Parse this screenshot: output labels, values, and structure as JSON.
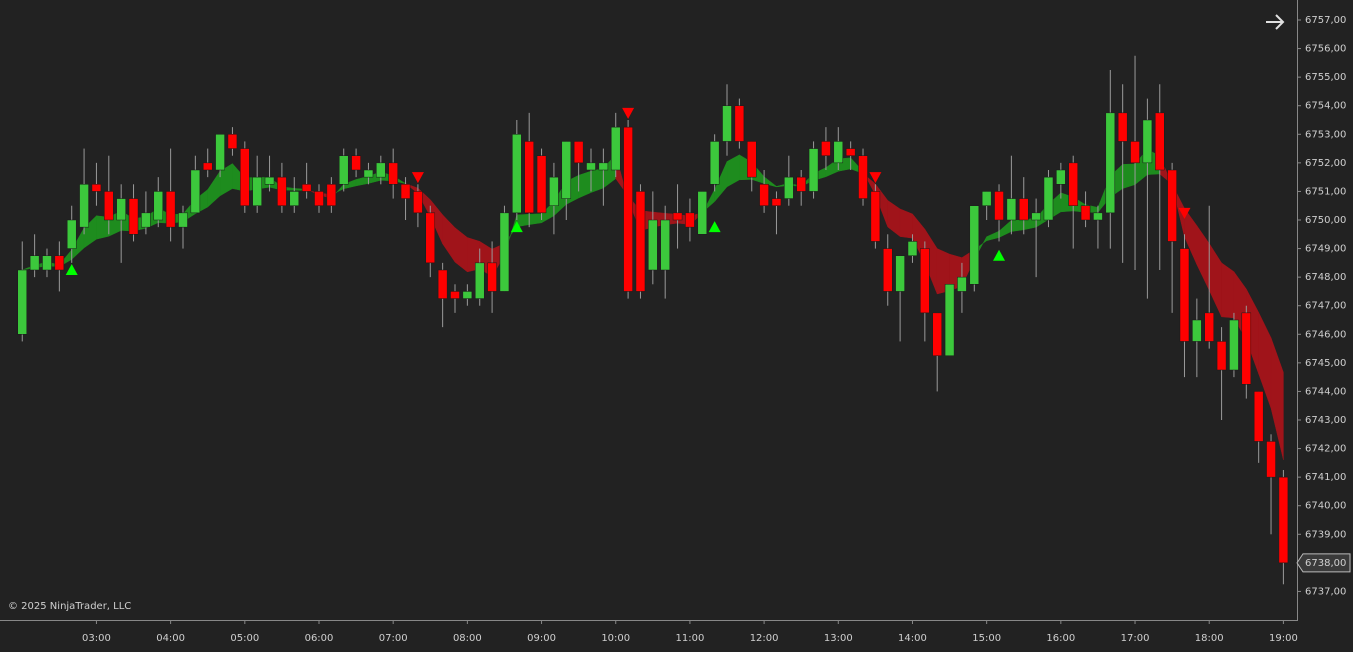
{
  "chart_data": {
    "type": "candlestick",
    "x": [
      "02:00",
      "02:10",
      "02:20",
      "02:30",
      "02:40",
      "02:50",
      "03:00",
      "03:10",
      "03:20",
      "03:30",
      "03:40",
      "03:50",
      "04:00",
      "04:10",
      "04:20",
      "04:30",
      "04:40",
      "04:50",
      "05:00",
      "05:10",
      "05:20",
      "05:30",
      "05:40",
      "05:50",
      "06:00",
      "06:10",
      "06:20",
      "06:30",
      "06:40",
      "06:50",
      "07:00",
      "07:10",
      "07:20",
      "07:30",
      "07:40",
      "07:50",
      "08:00",
      "08:10",
      "08:20",
      "08:30",
      "08:40",
      "08:50",
      "09:00",
      "09:10",
      "09:20",
      "09:30",
      "09:40",
      "09:50",
      "10:00",
      "10:10",
      "10:20",
      "10:30",
      "10:40",
      "10:50",
      "11:00",
      "11:10",
      "11:20",
      "11:30",
      "11:40",
      "11:50",
      "12:00",
      "12:10",
      "12:20",
      "12:30",
      "12:40",
      "12:50",
      "13:00",
      "13:10",
      "13:20",
      "13:30",
      "13:40",
      "13:50",
      "14:00",
      "14:10",
      "14:20",
      "14:30",
      "14:40",
      "14:50",
      "15:00",
      "15:10",
      "15:20",
      "15:30",
      "15:40",
      "15:50",
      "16:00",
      "16:10",
      "16:20",
      "16:30",
      "16:40",
      "16:50",
      "17:00",
      "17:10",
      "17:20",
      "17:30",
      "17:40",
      "17:50",
      "18:00",
      "18:10",
      "18:20",
      "18:30",
      "18:40",
      "18:50",
      "19:00"
    ],
    "open": [
      6746,
      6748.25,
      6748.25,
      6748.75,
      6749,
      6749.75,
      6751.25,
      6751,
      6750,
      6750.75,
      6749.75,
      6750,
      6751,
      6749.75,
      6750.25,
      6752,
      6751.75,
      6753,
      6752.5,
      6750.5,
      6751.25,
      6751.5,
      6750.5,
      6751.25,
      6751,
      6751.25,
      6751.25,
      6752.25,
      6751.5,
      6751.5,
      6752,
      6751.25,
      6751,
      6750.25,
      6748.25,
      6747.5,
      6747.25,
      6747.25,
      6748.5,
      6747.5,
      6750.25,
      6752.75,
      6752.25,
      6750.5,
      6750.75,
      6752.75,
      6751.75,
      6751.75,
      6751.75,
      6753.25,
      6751,
      6748.25,
      6748.25,
      6750.25,
      6750.25,
      6749.5,
      6751.25,
      6752.75,
      6754,
      6752.75,
      6751.25,
      6750.75,
      6750.75,
      6751.5,
      6751,
      6752.75,
      6752,
      6752.5,
      6752.25,
      6751,
      6749,
      6747.5,
      6748.75,
      6749,
      6746.75,
      6745.25,
      6747.5,
      6747.75,
      6750.5,
      6751,
      6750,
      6750.75,
      6750,
      6750,
      6751.25,
      6752,
      6750.5,
      6750,
      6750.25,
      6753.75,
      6752.75,
      6752,
      6753.75,
      6751.75,
      6749,
      6745.75,
      6746.75,
      6745.75,
      6744.75,
      6746.75,
      6744,
      6742.25,
      6741
    ],
    "high": [
      6749.25,
      6749.5,
      6749,
      6749.25,
      6750.5,
      6752.5,
      6752,
      6752.25,
      6751.25,
      6751.25,
      6751,
      6751.5,
      6752.5,
      6750.5,
      6752.25,
      6752.5,
      6753,
      6753.25,
      6752.75,
      6752.25,
      6752.25,
      6752,
      6751.5,
      6752,
      6751.25,
      6751.5,
      6752.5,
      6752.5,
      6752,
      6752.25,
      6752.5,
      6751.5,
      6751.25,
      6750.5,
      6748.5,
      6747.75,
      6747.75,
      6749,
      6749.25,
      6750.5,
      6753.5,
      6753.75,
      6752.5,
      6752,
      6752.75,
      6752.75,
      6752.5,
      6752.5,
      6753.75,
      6753.5,
      6751.25,
      6751,
      6750.5,
      6751.25,
      6750.75,
      6751,
      6753,
      6754.75,
      6754.25,
      6752.75,
      6751.75,
      6751,
      6752.25,
      6751.75,
      6752.75,
      6753.25,
      6753.25,
      6752.75,
      6752.5,
      6751.25,
      6749.5,
      6748.75,
      6749.5,
      6749.25,
      6746.75,
      6747.75,
      6748.5,
      6750.5,
      6751,
      6751.25,
      6752.25,
      6751.5,
      6750.75,
      6751.75,
      6752,
      6752.25,
      6751,
      6750.5,
      6755.25,
      6754.75,
      6755.75,
      6754.25,
      6754.75,
      6752,
      6749.5,
      6747.25,
      6750.5,
      6746.25,
      6746.75,
      6747,
      6744,
      6742.5,
      6741.25
    ],
    "low": [
      6745.75,
      6748,
      6748,
      6747.5,
      6748.5,
      6749.5,
      6750.5,
      6749.5,
      6748.5,
      6749.25,
      6749.5,
      6749.75,
      6749.25,
      6749,
      6750.25,
      6751.5,
      6751.5,
      6752.25,
      6750.25,
      6750.25,
      6751,
      6750.25,
      6750.25,
      6750.75,
      6750.25,
      6750.25,
      6751,
      6751.5,
      6751.25,
      6751.25,
      6750.75,
      6750,
      6749.75,
      6748,
      6746.25,
      6746.75,
      6747,
      6747,
      6746.75,
      6747.5,
      6750,
      6749.75,
      6750,
      6749.5,
      6750,
      6751,
      6751,
      6750.5,
      6751.5,
      6747.25,
      6747.25,
      6747.75,
      6747.25,
      6749,
      6749.25,
      6749.5,
      6751,
      6752.25,
      6752.5,
      6751,
      6750.25,
      6749.5,
      6750.5,
      6750.5,
      6750.75,
      6751.75,
      6751.75,
      6751.75,
      6750.5,
      6749,
      6747,
      6745.75,
      6748.5,
      6745.75,
      6744,
      6745.25,
      6746.75,
      6747.5,
      6750,
      6749.25,
      6749.5,
      6749.5,
      6748,
      6749.75,
      6750.75,
      6749,
      6749.75,
      6749,
      6749,
      6748.5,
      6748.25,
      6747.25,
      6748.25,
      6746.75,
      6744.5,
      6744.5,
      6745.5,
      6743,
      6744.5,
      6743.75,
      6741.5,
      6739,
      6737.25
    ],
    "close": [
      6748.25,
      6748.75,
      6748.75,
      6748.25,
      6750,
      6751.25,
      6751,
      6750,
      6750.75,
      6749.5,
      6750.25,
      6751,
      6749.75,
      6750.25,
      6751.75,
      6751.75,
      6753,
      6752.5,
      6750.5,
      6751.5,
      6751.5,
      6750.5,
      6751,
      6751,
      6750.5,
      6750.5,
      6752.25,
      6751.75,
      6751.75,
      6752,
      6751.25,
      6750.75,
      6750.25,
      6748.5,
      6747.25,
      6747.25,
      6747.5,
      6748.5,
      6747.5,
      6750.25,
      6753,
      6750.25,
      6750.25,
      6751.5,
      6752.75,
      6752,
      6752,
      6752,
      6753.25,
      6747.5,
      6747.5,
      6750,
      6750,
      6750,
      6749.75,
      6751,
      6752.75,
      6754,
      6752.75,
      6751.5,
      6750.5,
      6750.5,
      6751.5,
      6751,
      6752.5,
      6752.25,
      6752.75,
      6752.25,
      6750.75,
      6749.25,
      6747.5,
      6748.75,
      6749.25,
      6746.75,
      6745.25,
      6747.75,
      6748,
      6750.5,
      6751,
      6750,
      6750.75,
      6750,
      6750.25,
      6751.5,
      6751.75,
      6750.5,
      6750,
      6750.25,
      6753.75,
      6752.75,
      6752,
      6753.5,
      6751.75,
      6749.25,
      6745.75,
      6746.5,
      6745.75,
      6744.75,
      6746.5,
      6744.25,
      6742.25,
      6741,
      6738
    ],
    "up_color": "#3cc83c",
    "down_color": "#ff0000",
    "wick_color": "#9a9a9a",
    "ribbon_colors": {
      "up": "#1e8c1e",
      "down": "#a0141a"
    },
    "signals": [
      {
        "x": "02:40",
        "direction": "up",
        "value": 6748.25,
        "color": "#00ff00"
      },
      {
        "x": "07:20",
        "direction": "down",
        "value": 6751.5,
        "color": "#ff0000"
      },
      {
        "x": "08:40",
        "direction": "up",
        "value": 6749.75,
        "color": "#00ff00"
      },
      {
        "x": "10:10",
        "direction": "down",
        "value": 6753.75,
        "color": "#ff0000"
      },
      {
        "x": "11:20",
        "direction": "up",
        "value": 6749.75,
        "color": "#00ff00"
      },
      {
        "x": "13:30",
        "direction": "down",
        "value": 6751.5,
        "color": "#ff0000"
      },
      {
        "x": "15:10",
        "direction": "up",
        "value": 6748.75,
        "color": "#00ff00"
      },
      {
        "x": "17:40",
        "direction": "down",
        "value": 6750.25,
        "color": "#ff0000"
      }
    ],
    "last_price": {
      "value": 6738,
      "label": "6738,00"
    },
    "xlim": [
      "01:42",
      "19:11"
    ],
    "xticks": [
      "03:00",
      "04:00",
      "05:00",
      "06:00",
      "07:00",
      "08:00",
      "09:00",
      "10:00",
      "11:00",
      "12:00",
      "13:00",
      "14:00",
      "15:00",
      "16:00",
      "17:00",
      "18:00",
      "19:00"
    ],
    "ylim": [
      6736.0,
      6757.7
    ],
    "yticks": [
      {
        "value": 6737,
        "label": "6737,00"
      },
      {
        "value": 6738,
        "label": "6738,00"
      },
      {
        "value": 6739,
        "label": "6739,00"
      },
      {
        "value": 6740,
        "label": "6740,00"
      },
      {
        "value": 6741,
        "label": "6741,00"
      },
      {
        "value": 6742,
        "label": "6742,00"
      },
      {
        "value": 6743,
        "label": "6743,00"
      },
      {
        "value": 6744,
        "label": "6744,00"
      },
      {
        "value": 6745,
        "label": "6745,00"
      },
      {
        "value": 6746,
        "label": "6746,00"
      },
      {
        "value": 6747,
        "label": "6747,00"
      },
      {
        "value": 6748,
        "label": "6748,00"
      },
      {
        "value": 6749,
        "label": "6749,00"
      },
      {
        "value": 6750,
        "label": "6750,00"
      },
      {
        "value": 6751,
        "label": "6751,00"
      },
      {
        "value": 6752,
        "label": "6752,00"
      },
      {
        "value": 6753,
        "label": "6753,00"
      },
      {
        "value": 6754,
        "label": "6754,00"
      },
      {
        "value": 6755,
        "label": "6755,00"
      },
      {
        "value": 6756,
        "label": "6756,00"
      },
      {
        "value": 6757,
        "label": "6757,00"
      }
    ],
    "copyright": "© 2025 NinjaTrader, LLC"
  }
}
